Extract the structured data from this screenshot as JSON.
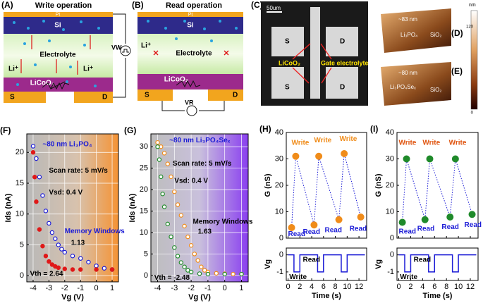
{
  "diagram_a": {
    "label": "(A)",
    "title": "Write operation",
    "top": "Pt",
    "layer": "Si",
    "middle": "Electrolyte",
    "li_left": "Li⁺",
    "li_right": "Li⁺",
    "bottom": "LiCoO₂",
    "source": "S",
    "drain": "D",
    "voltage": "VW"
  },
  "diagram_b": {
    "label": "(B)",
    "title": "Read operation",
    "top": "Pt",
    "layer": "Si",
    "li": "Li⁺",
    "middle": "Electrolyte",
    "bottom": "LiCoO₂",
    "source": "S",
    "drain": "D",
    "voltage": "VR"
  },
  "image_c": {
    "label": "(C)",
    "scale": "50um",
    "s1": "S",
    "d1": "D",
    "s2": "S",
    "d2": "D",
    "licoo2": "LiCoO₂",
    "gate": "Gate electrolyte"
  },
  "image_d": {
    "label": "(D)",
    "thickness": "~83 nm",
    "film": "Li₃PO₄",
    "substrate": "SiO₂"
  },
  "image_e": {
    "label": "(E)",
    "thickness": "~80 nm",
    "film": "Li₃PO₄Seₓ",
    "substrate": "SiO₂"
  },
  "colorbar": {
    "unit": "nm",
    "max": "120",
    "min": "0"
  },
  "chart_data": [
    {
      "type": "scatter",
      "label": "(F)",
      "xlabel": "Vg (V)",
      "ylabel": "Ids (nA)",
      "xlim": [
        -4.4,
        1.4
      ],
      "ylim": [
        -1,
        23
      ],
      "xticks": [
        -4,
        -3,
        -2,
        -1,
        0,
        1
      ],
      "yticks": [
        0,
        5,
        10,
        15,
        20
      ],
      "grid": true,
      "annotations": [
        "~80 nm Li₃PO₄",
        "Scan rate: 5 mV/s",
        "Vsd: 0.4 V",
        "Memory Windows",
        "1.13",
        "Vth = 2.64"
      ],
      "series": [
        {
          "color": "#1c1cd6",
          "marker": "open",
          "x": [
            -4,
            -3.8,
            -3.6,
            -3.4,
            -3.2,
            -3,
            -2.8,
            -2.6,
            -2.4,
            -2.2,
            -2,
            -1.5,
            -1,
            -0.5,
            0,
            0.5,
            1
          ],
          "values": [
            21,
            19,
            16,
            13,
            10.5,
            8.5,
            7,
            6,
            5,
            4.3,
            3.8,
            3.2,
            2.8,
            2.2,
            1.6,
            1.2,
            1
          ]
        },
        {
          "color": "#e01818",
          "marker": "filled",
          "x": [
            -4,
            -3.9,
            -3.8,
            -3.6,
            -3.4,
            -3.2,
            -3,
            -2.8,
            -2.6,
            -2.4,
            -2,
            -1.5,
            -1,
            0,
            1
          ],
          "values": [
            20,
            16,
            12,
            7.5,
            4.8,
            3.2,
            2.3,
            1.8,
            1.5,
            1.3,
            1.1,
            1,
            1,
            1,
            1
          ]
        }
      ]
    },
    {
      "type": "scatter",
      "label": "(G)",
      "xlabel": "Vg (V)",
      "ylabel": "Ids (nA)",
      "xlim": [
        -4.4,
        1.4
      ],
      "ylim": [
        -1.5,
        33
      ],
      "xticks": [
        -4,
        -3,
        -2,
        -1,
        0,
        1
      ],
      "yticks": [
        0,
        5,
        10,
        15,
        20,
        25,
        30
      ],
      "grid": true,
      "annotations": [
        "~80 nm Li₃PO₄Seₓ",
        "Scan rate: 5 mV/s",
        "Vsd: 0.4 V",
        "Memory Windows",
        "1.63",
        "Vth = -2.48"
      ],
      "series": [
        {
          "color": "#f08c1a",
          "marker": "open",
          "x": [
            -4,
            -3.8,
            -3.6,
            -3.4,
            -3.2,
            -3,
            -2.8,
            -2.6,
            -2.4,
            -2.2,
            -2,
            -1.8,
            -1.6,
            -1.4,
            -1.2,
            -1,
            -0.5,
            0,
            0.5,
            1
          ],
          "values": [
            31,
            30,
            28.5,
            26,
            23,
            19.5,
            16.5,
            14,
            11.5,
            9,
            7,
            5,
            3.5,
            2,
            1.2,
            0.8,
            0.5,
            0.4,
            0.3,
            0.3
          ]
        },
        {
          "color": "#1f8a2a",
          "marker": "open",
          "x": [
            -4,
            -3.9,
            -3.8,
            -3.7,
            -3.6,
            -3.4,
            -3.2,
            -3,
            -2.8,
            -2.6,
            -2.4,
            -2.2,
            -2,
            -1.5,
            -1,
            0,
            1
          ],
          "values": [
            30,
            27,
            23,
            19,
            16,
            12,
            9,
            6.5,
            4.5,
            3,
            2,
            1.2,
            0.8,
            0.4,
            0.3,
            0.3,
            0.3
          ]
        }
      ]
    },
    {
      "type": "scatter",
      "label": "(H)",
      "ylabel": "G (nS)",
      "connect": "dotted",
      "xlim": [
        -0.3,
        13.3
      ],
      "ylim": [
        0,
        40
      ],
      "xticks": [
        0,
        2,
        4,
        6,
        8,
        10,
        12
      ],
      "yticks": [
        0,
        10,
        20,
        30,
        40
      ],
      "annotations": [
        "Write",
        "Write",
        "Write",
        "Read",
        "Read",
        "Read",
        "Read"
      ],
      "series": [
        {
          "color": "#f08c1a",
          "marker": "half",
          "x": [
            0.6,
            1.3,
            4.4,
            5.2,
            8.6,
            9.5,
            12.3
          ],
          "values": [
            4,
            31,
            5,
            31,
            7,
            32,
            8
          ]
        }
      ]
    },
    {
      "type": "line",
      "xlabel": "Time (s)",
      "ylabel": "Vg",
      "xlim": [
        -0.3,
        13.3
      ],
      "ylim": [
        -1.5,
        0.4
      ],
      "xticks": [
        0,
        2,
        4,
        6,
        8,
        10,
        12
      ],
      "yticks": [
        -1,
        0
      ],
      "annotations": [
        "Read",
        "Write"
      ],
      "series": [
        {
          "color": "#1c1cd6",
          "x": [
            0,
            1,
            1,
            2,
            2,
            5,
            5,
            6,
            6,
            9,
            9,
            10,
            10,
            13
          ],
          "values": [
            0,
            0,
            -1,
            -1,
            0,
            0,
            -1,
            -1,
            0,
            0,
            -1,
            -1,
            0,
            0
          ]
        }
      ]
    },
    {
      "type": "scatter",
      "label": "(I)",
      "ylabel": "G (nS)",
      "connect": "dotted",
      "xlim": [
        -0.3,
        13.3
      ],
      "ylim": [
        0,
        40
      ],
      "xticks": [
        0,
        2,
        4,
        6,
        8,
        10,
        12
      ],
      "yticks": [
        0,
        10,
        20,
        30,
        40
      ],
      "annotations": [
        "Write",
        "Write",
        "Write",
        "Read",
        "Read",
        "Read",
        "Read"
      ],
      "series": [
        {
          "color": "#1f8a2a",
          "marker": "half",
          "x": [
            0.6,
            1.3,
            4.4,
            5.2,
            8.6,
            9.5,
            12.3
          ],
          "values": [
            6,
            30,
            7,
            30,
            8,
            30,
            9
          ]
        }
      ]
    },
    {
      "type": "line",
      "xlabel": "Time (s)",
      "ylabel": "Vg",
      "xlim": [
        -0.3,
        13.3
      ],
      "ylim": [
        -1.5,
        0.4
      ],
      "xticks": [
        0,
        2,
        4,
        6,
        8,
        10,
        12
      ],
      "yticks": [
        -1,
        0
      ],
      "annotations": [
        "Read",
        "Write"
      ],
      "series": [
        {
          "color": "#1c1cd6",
          "x": [
            0,
            1,
            1,
            2,
            2,
            5,
            5,
            6,
            6,
            9,
            9,
            10,
            10,
            13
          ],
          "values": [
            0,
            0,
            -1,
            -1,
            0,
            0,
            -1,
            -1,
            0,
            0,
            -1,
            -1,
            0,
            0
          ]
        }
      ]
    }
  ]
}
